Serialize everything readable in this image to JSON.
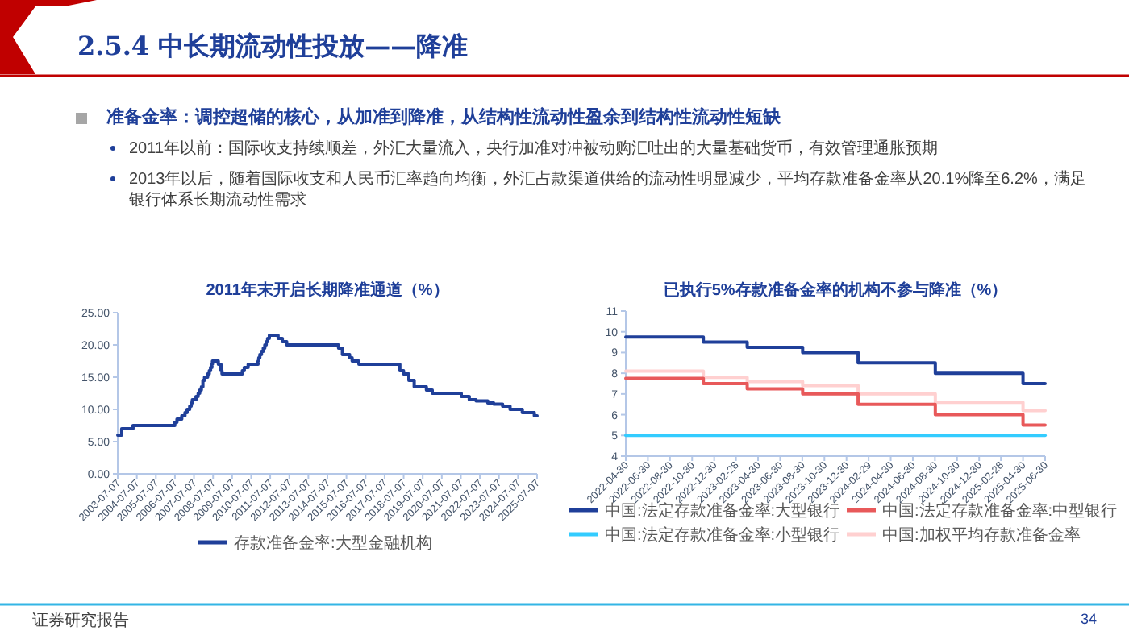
{
  "chart_data": [
    {
      "type": "other",
      "title": "2.5.4 中长期流动性投放——降准",
      "subtitle": "准备金率：调控超储的核心，从加准到降准，从结构性流动性盈余到结构性流动性短缺",
      "annotations": [
        "2011年以前：国际收支持续顺差，外汇大量流入，央行加准对冲被动购汇吐出的大量基础货币，有效管理通胀预期",
        "2013年以后，随着国际收支和人民币汇率趋向均衡，外汇占款渠道供给的流动性明显减少，平均存款准备金率从20.1%降至6.2%，满足银行体系长期流动性需求",
        "证券研究报告",
        "34"
      ]
    },
    {
      "type": "step",
      "title": "2011年末开启长期降准通道（%）",
      "legend": "bottom",
      "xlim": [
        "2003-07-07",
        "2025-07-07"
      ],
      "xticks": [
        "2003-07-07",
        "2004-07-07",
        "2005-07-07",
        "2006-07-07",
        "2007-07-07",
        "2008-07-07",
        "2009-07-07",
        "2010-07-07",
        "2011-07-07",
        "2012-07-07",
        "2013-07-07",
        "2014-07-07",
        "2015-07-07",
        "2016-07-07",
        "2017-07-07",
        "2018-07-07",
        "2019-07-07",
        "2020-07-07",
        "2021-07-07",
        "2022-07-07",
        "2023-07-07",
        "2024-07-07",
        "2025-07-07"
      ],
      "ylim": [
        0,
        25
      ],
      "yticks": [
        {
          "value": 0,
          "label": "0.00"
        },
        {
          "value": 5,
          "label": "5.00"
        },
        {
          "value": 10,
          "label": "10.00"
        },
        {
          "value": 15,
          "label": "15.00"
        },
        {
          "value": 20,
          "label": "20.00"
        },
        {
          "value": 25,
          "label": "25.00"
        }
      ],
      "series": [
        {
          "name": "存款准备金率:大型金融机构",
          "color": "#1f3f99",
          "x": [
            "2003-07-07",
            "2003-09-21",
            "2004-04-25",
            "2006-07-05",
            "2006-08-15",
            "2006-11-15",
            "2007-01-15",
            "2007-02-25",
            "2007-04-16",
            "2007-05-15",
            "2007-06-05",
            "2007-08-15",
            "2007-09-25",
            "2007-10-25",
            "2007-11-26",
            "2007-12-25",
            "2008-01-25",
            "2008-03-25",
            "2008-04-25",
            "2008-05-20",
            "2008-06-15",
            "2008-06-25",
            "2008-10-15",
            "2008-12-05",
            "2008-12-25",
            "2010-01-18",
            "2010-02-25",
            "2010-05-10",
            "2010-11-16",
            "2010-11-29",
            "2010-12-20",
            "2011-01-20",
            "2011-02-24",
            "2011-03-25",
            "2011-04-21",
            "2011-05-18",
            "2011-06-20",
            "2011-12-05",
            "2012-02-24",
            "2012-05-18",
            "2015-02-05",
            "2015-04-20",
            "2015-09-06",
            "2015-10-24",
            "2016-03-01",
            "2018-04-25",
            "2018-07-05",
            "2018-10-15",
            "2019-01-25",
            "2019-09-16",
            "2020-01-06",
            "2021-07-15",
            "2021-12-15",
            "2022-04-25",
            "2022-12-05",
            "2023-03-27",
            "2023-09-15",
            "2024-02-05",
            "2024-09-27",
            "2025-05-15",
            "2025-07-07"
          ],
          "values": [
            6,
            7,
            7.5,
            8,
            8.5,
            9,
            9.5,
            10,
            10.5,
            11,
            11.5,
            12,
            12.5,
            13,
            13.5,
            14.5,
            15,
            15.5,
            16,
            16.5,
            17,
            17.5,
            17,
            16,
            15.5,
            16,
            16.5,
            17,
            17.5,
            18,
            18.5,
            19,
            19.5,
            20,
            20.5,
            21,
            21.5,
            21,
            20.5,
            20,
            19.5,
            18.5,
            18,
            17.5,
            17,
            16,
            15.5,
            14.5,
            13.5,
            13,
            12.5,
            12,
            11.5,
            11.3,
            11,
            10.8,
            10.5,
            10,
            9.5,
            9,
            9
          ]
        }
      ]
    },
    {
      "type": "step",
      "title": "已执行5%存款准备金率的机构不参与降准（%）",
      "legend": "bottom",
      "xlim": [
        "2022-04-30",
        "2025-06-30"
      ],
      "xticks": [
        "2022-04-30",
        "2022-06-30",
        "2022-08-30",
        "2022-10-30",
        "2022-12-30",
        "2023-02-28",
        "2023-04-30",
        "2023-06-30",
        "2023-08-30",
        "2023-10-30",
        "2023-12-30",
        "2024-02-29",
        "2024-04-30",
        "2024-06-30",
        "2024-08-30",
        "2024-10-30",
        "2024-12-30",
        "2025-02-28",
        "2025-04-30",
        "2025-06-30"
      ],
      "ylim": [
        4,
        11
      ],
      "yticks": [
        4,
        5,
        6,
        7,
        8,
        9,
        10,
        11
      ],
      "x": [
        "2022-04-30",
        "2022-11-30",
        "2023-03-31",
        "2023-08-31",
        "2024-01-31",
        "2024-08-31",
        "2025-04-30",
        "2025-06-30"
      ],
      "series": [
        {
          "name": "中国:法定存款准备金率:大型银行",
          "color": "#1f3f99",
          "values": [
            9.75,
            9.5,
            9.25,
            9,
            8.5,
            8,
            7.5,
            7.5
          ]
        },
        {
          "name": "中国:法定存款准备金率:中型银行",
          "color": "#e8595a",
          "values": [
            7.75,
            7.5,
            7.25,
            7,
            6.5,
            6,
            5.5,
            5.5
          ]
        },
        {
          "name": "中国:法定存款准备金率:小型银行",
          "color": "#33ccff",
          "values": [
            5,
            5,
            5,
            5,
            5,
            5,
            5,
            5
          ]
        },
        {
          "name": "中国:加权平均存款准备金率",
          "color": "#ffd0d0",
          "values": [
            8.1,
            7.8,
            7.6,
            7.4,
            7,
            6.6,
            6.2,
            6.2
          ]
        }
      ]
    }
  ]
}
